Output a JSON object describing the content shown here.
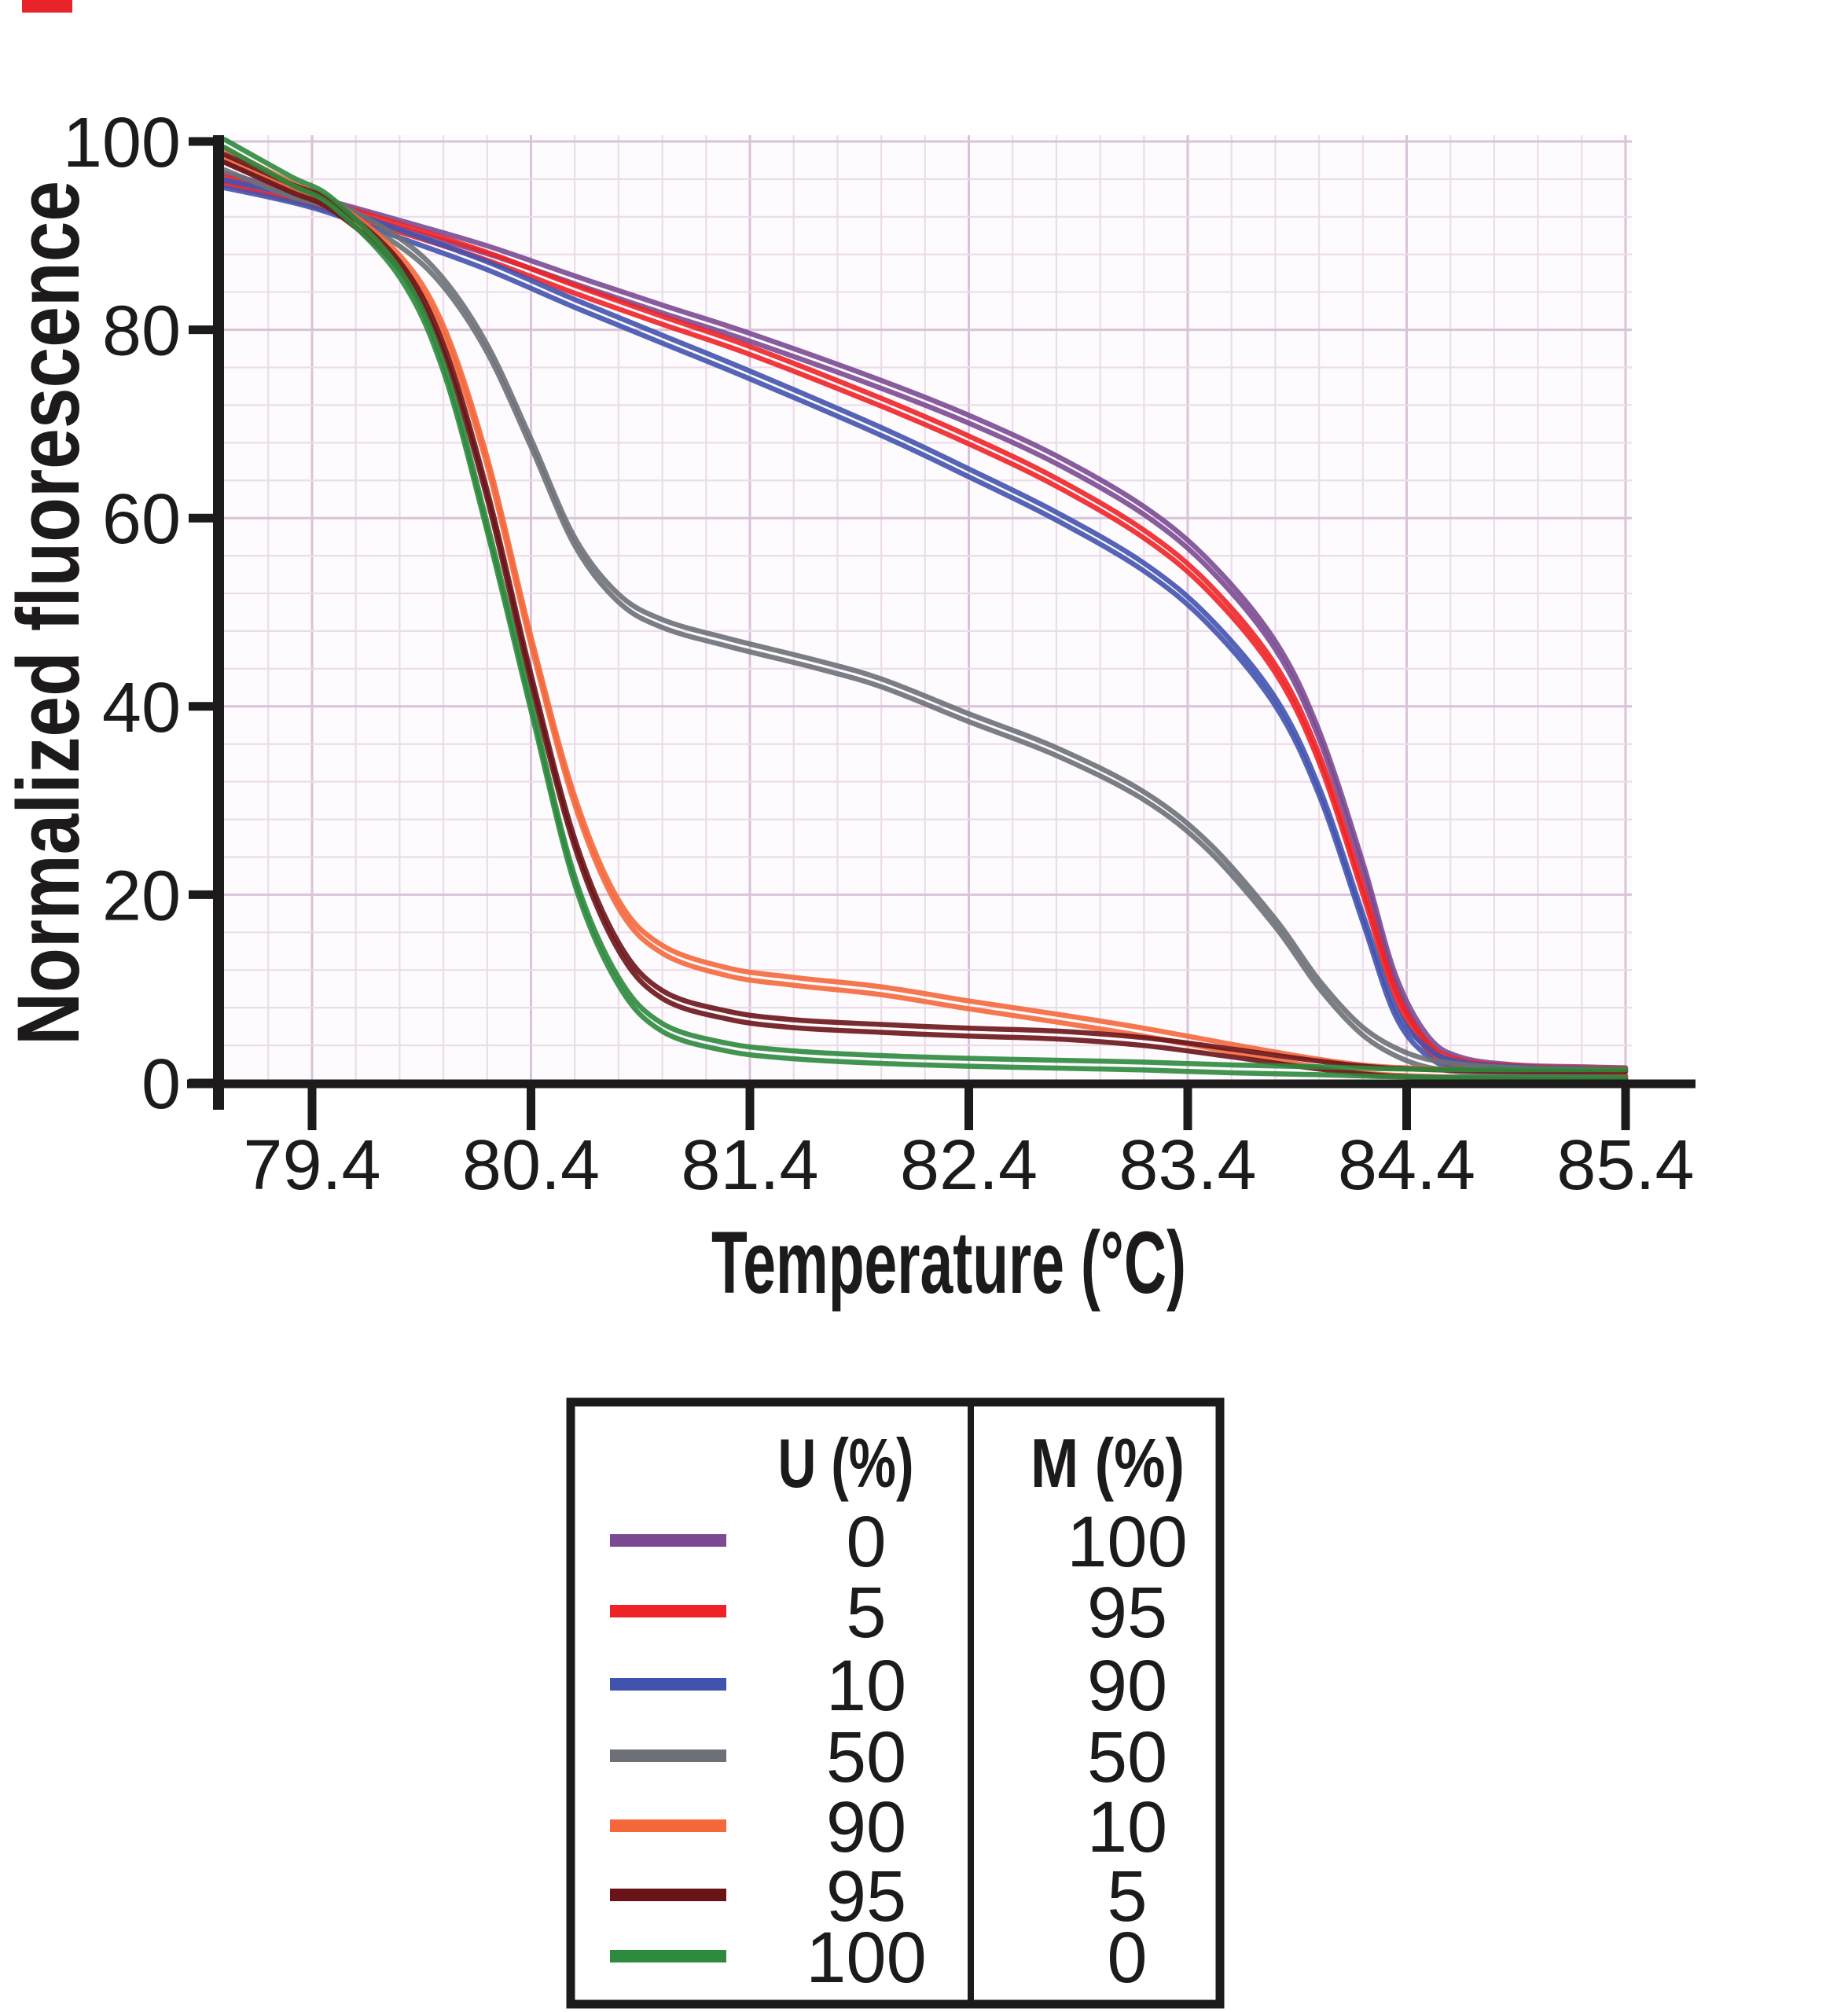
{
  "figure_title": "",
  "corner_mark_color": "#e8232a",
  "text_color": "#1d1a1b",
  "plot_bg": "#fdfbfd",
  "grid_minor_color": "#ecdcea",
  "grid_major_color": "#d9c3d8",
  "chart_data": {
    "type": "line",
    "title": "",
    "xlabel": "Temperature (°C)",
    "ylabel": "Normalized fluorescence",
    "x_ticks": [
      79.4,
      80.4,
      81.4,
      82.4,
      83.4,
      84.4,
      85.4
    ],
    "x_tick_labels": [
      "79.4",
      "80.4",
      "81.4",
      "82.4",
      "83.4",
      "84.4",
      "85.4"
    ],
    "y_ticks": [
      0,
      20,
      40,
      60,
      80,
      100
    ],
    "y_tick_labels": [
      "0",
      "20",
      "40",
      "60",
      "80",
      "100"
    ],
    "xlim": [
      78.99,
      85.42
    ],
    "ylim": [
      0,
      100
    ],
    "grid": {
      "on": true,
      "minor_x_step_c": 0.2,
      "minor_y_step": 4
    },
    "legend_position": "bottom",
    "replicates_per_series": 2,
    "series": [
      {
        "name": "U0-M100",
        "u": "0",
        "m": "100",
        "color": "#7b4a92",
        "points": [
          [
            79.0,
            96.2
          ],
          [
            79.4,
            93.8
          ],
          [
            79.8,
            91.2
          ],
          [
            80.2,
            88.5
          ],
          [
            80.6,
            85.3
          ],
          [
            81.0,
            82.2
          ],
          [
            81.4,
            79.2
          ],
          [
            82.0,
            74.2
          ],
          [
            82.4,
            70.5
          ],
          [
            82.8,
            66.2
          ],
          [
            83.2,
            60.8
          ],
          [
            83.5,
            55.0
          ],
          [
            83.8,
            46.5
          ],
          [
            84.0,
            37.0
          ],
          [
            84.2,
            23.0
          ],
          [
            84.35,
            11.0
          ],
          [
            84.5,
            4.5
          ],
          [
            84.65,
            2.3
          ],
          [
            84.9,
            1.5
          ],
          [
            85.2,
            1.3
          ],
          [
            85.4,
            1.2
          ]
        ]
      },
      {
        "name": "U5-M95",
        "u": "5",
        "m": "95",
        "color": "#ee2328",
        "points": [
          [
            79.0,
            95.8
          ],
          [
            79.4,
            93.6
          ],
          [
            79.8,
            90.8
          ],
          [
            80.2,
            87.8
          ],
          [
            80.6,
            84.3
          ],
          [
            81.0,
            81.0
          ],
          [
            81.4,
            77.8
          ],
          [
            82.0,
            72.3
          ],
          [
            82.4,
            68.3
          ],
          [
            82.8,
            63.8
          ],
          [
            83.2,
            58.3
          ],
          [
            83.5,
            52.5
          ],
          [
            83.8,
            44.0
          ],
          [
            84.0,
            34.5
          ],
          [
            84.2,
            20.5
          ],
          [
            84.35,
            9.5
          ],
          [
            84.5,
            3.8
          ],
          [
            84.65,
            2.0
          ],
          [
            84.9,
            1.4
          ],
          [
            85.2,
            1.2
          ],
          [
            85.4,
            1.1
          ]
        ]
      },
      {
        "name": "U10-M90",
        "u": "10",
        "m": "90",
        "color": "#4253ae",
        "points": [
          [
            79.0,
            95.5
          ],
          [
            79.4,
            93.4
          ],
          [
            79.8,
            90.2
          ],
          [
            80.2,
            86.8
          ],
          [
            80.6,
            82.8
          ],
          [
            81.0,
            79.0
          ],
          [
            81.4,
            75.2
          ],
          [
            82.0,
            69.2
          ],
          [
            82.4,
            64.8
          ],
          [
            82.8,
            60.2
          ],
          [
            83.2,
            54.8
          ],
          [
            83.5,
            49.0
          ],
          [
            83.8,
            40.5
          ],
          [
            84.0,
            31.0
          ],
          [
            84.2,
            17.5
          ],
          [
            84.35,
            7.5
          ],
          [
            84.5,
            3.2
          ],
          [
            84.65,
            1.8
          ],
          [
            84.9,
            1.3
          ],
          [
            85.2,
            1.1
          ],
          [
            85.4,
            1.0
          ]
        ]
      },
      {
        "name": "U50-M50",
        "u": "50",
        "m": "50",
        "color": "#6d7077",
        "points": [
          [
            79.0,
            97.4
          ],
          [
            79.3,
            94.6
          ],
          [
            79.5,
            93.2
          ],
          [
            79.8,
            89.3
          ],
          [
            80.0,
            85.0
          ],
          [
            80.2,
            78.0
          ],
          [
            80.4,
            68.0
          ],
          [
            80.6,
            57.5
          ],
          [
            80.8,
            51.5
          ],
          [
            81.0,
            48.8
          ],
          [
            81.3,
            46.8
          ],
          [
            81.7,
            44.5
          ],
          [
            82.0,
            42.5
          ],
          [
            82.4,
            38.8
          ],
          [
            82.8,
            35.2
          ],
          [
            83.2,
            30.5
          ],
          [
            83.5,
            25.0
          ],
          [
            83.8,
            17.0
          ],
          [
            84.0,
            10.5
          ],
          [
            84.2,
            5.5
          ],
          [
            84.4,
            2.8
          ],
          [
            84.6,
            1.7
          ],
          [
            84.9,
            1.2
          ],
          [
            85.4,
            1.0
          ]
        ]
      },
      {
        "name": "U90-M10",
        "u": "90",
        "m": "10",
        "color": "#f4683c",
        "points": [
          [
            79.0,
            98.8
          ],
          [
            79.3,
            95.3
          ],
          [
            79.5,
            93.2
          ],
          [
            79.8,
            87.5
          ],
          [
            80.0,
            80.0
          ],
          [
            80.2,
            66.0
          ],
          [
            80.4,
            47.0
          ],
          [
            80.6,
            30.0
          ],
          [
            80.8,
            19.0
          ],
          [
            81.0,
            14.2
          ],
          [
            81.3,
            11.8
          ],
          [
            81.6,
            10.8
          ],
          [
            82.0,
            9.8
          ],
          [
            82.4,
            8.3
          ],
          [
            82.8,
            6.9
          ],
          [
            83.2,
            5.4
          ],
          [
            83.6,
            3.7
          ],
          [
            84.0,
            2.1
          ],
          [
            84.3,
            1.3
          ],
          [
            84.7,
            1.0
          ],
          [
            85.0,
            0.9
          ],
          [
            85.4,
            0.9
          ]
        ]
      },
      {
        "name": "U95-M5",
        "u": "95",
        "m": "5",
        "color": "#6b1418",
        "points": [
          [
            79.0,
            98.2
          ],
          [
            79.3,
            95.1
          ],
          [
            79.5,
            93.0
          ],
          [
            79.8,
            86.8
          ],
          [
            80.0,
            78.0
          ],
          [
            80.2,
            62.5
          ],
          [
            80.4,
            43.0
          ],
          [
            80.6,
            25.5
          ],
          [
            80.8,
            14.5
          ],
          [
            81.0,
            9.4
          ],
          [
            81.3,
            7.2
          ],
          [
            81.6,
            6.3
          ],
          [
            82.0,
            5.8
          ],
          [
            82.4,
            5.4
          ],
          [
            82.8,
            5.1
          ],
          [
            83.2,
            4.4
          ],
          [
            83.6,
            3.2
          ],
          [
            84.0,
            1.9
          ],
          [
            84.3,
            1.2
          ],
          [
            84.7,
            0.9
          ],
          [
            85.0,
            0.8
          ],
          [
            85.4,
            0.8
          ]
        ]
      },
      {
        "name": "U100-M0",
        "u": "100",
        "m": "0",
        "color": "#2e8a3e",
        "points": [
          [
            79.0,
            99.8
          ],
          [
            79.3,
            95.9
          ],
          [
            79.5,
            93.4
          ],
          [
            79.8,
            86.0
          ],
          [
            80.0,
            76.0
          ],
          [
            80.2,
            59.0
          ],
          [
            80.4,
            40.0
          ],
          [
            80.6,
            21.5
          ],
          [
            80.8,
            10.8
          ],
          [
            81.0,
            5.9
          ],
          [
            81.3,
            3.8
          ],
          [
            81.6,
            3.0
          ],
          [
            82.0,
            2.5
          ],
          [
            82.4,
            2.2
          ],
          [
            82.8,
            2.0
          ],
          [
            83.2,
            1.8
          ],
          [
            83.6,
            1.5
          ],
          [
            84.0,
            1.3
          ],
          [
            84.3,
            1.1
          ],
          [
            84.7,
            1.0
          ],
          [
            85.0,
            1.0
          ],
          [
            85.4,
            1.0
          ]
        ]
      }
    ]
  },
  "legend": {
    "u_header": "U (%)",
    "m_header": "M (%)",
    "rows": [
      {
        "u": "0",
        "m": "100",
        "color": "#7b4a92"
      },
      {
        "u": "5",
        "m": "95",
        "color": "#ee2328"
      },
      {
        "u": "10",
        "m": "90",
        "color": "#4253ae"
      },
      {
        "u": "50",
        "m": "50",
        "color": "#6d7077"
      },
      {
        "u": "90",
        "m": "10",
        "color": "#f4683c"
      },
      {
        "u": "95",
        "m": "5",
        "color": "#6b1418"
      },
      {
        "u": "100",
        "m": "0",
        "color": "#2e8a3e"
      }
    ]
  }
}
